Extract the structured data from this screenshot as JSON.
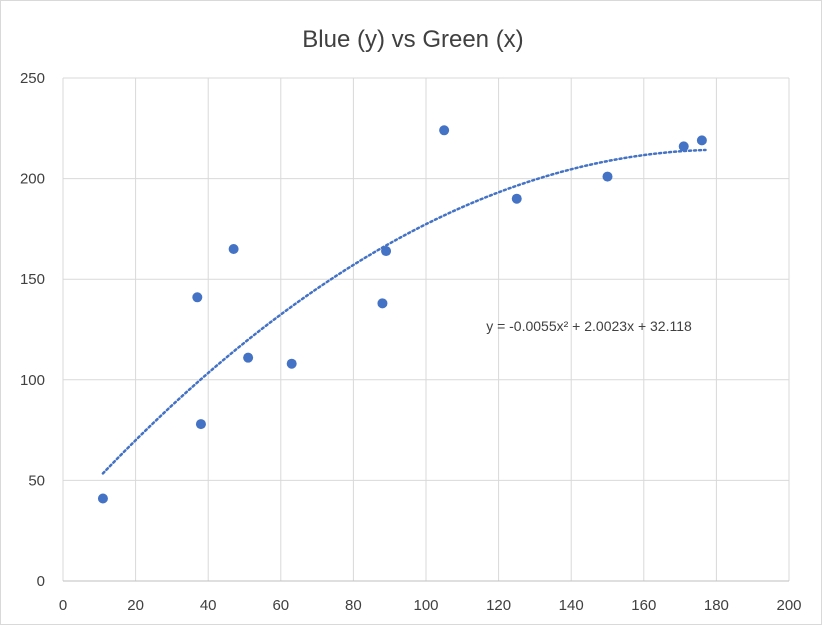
{
  "chart_data": {
    "type": "scatter",
    "title": "Blue (y) vs Green (x)",
    "xlabel": "",
    "ylabel": "",
    "xlim": [
      0,
      200
    ],
    "ylim": [
      0,
      250
    ],
    "x_ticks": [
      0,
      20,
      40,
      60,
      80,
      100,
      120,
      140,
      160,
      180,
      200
    ],
    "y_ticks": [
      0,
      50,
      100,
      150,
      200,
      250
    ],
    "grid": true,
    "legend": "none",
    "series": [
      {
        "points": [
          {
            "x": 11,
            "y": 41
          },
          {
            "x": 37,
            "y": 141
          },
          {
            "x": 38,
            "y": 78
          },
          {
            "x": 47,
            "y": 165
          },
          {
            "x": 51,
            "y": 111
          },
          {
            "x": 63,
            "y": 108
          },
          {
            "x": 88,
            "y": 138
          },
          {
            "x": 89,
            "y": 164
          },
          {
            "x": 105,
            "y": 224
          },
          {
            "x": 125,
            "y": 190
          },
          {
            "x": 150,
            "y": 201
          },
          {
            "x": 171,
            "y": 216
          },
          {
            "x": 176,
            "y": 219
          }
        ],
        "color": "#4472c4"
      }
    ],
    "trendline": {
      "type": "polynomial",
      "order": 2,
      "coefficients": {
        "a": -0.0055,
        "b": 2.0023,
        "c": 32.118
      },
      "x_range": [
        11,
        177
      ],
      "color": "#4472c4",
      "style": "dotted",
      "equation_label": "y = -0.0055x² + 2.0023x + 32.118"
    }
  }
}
